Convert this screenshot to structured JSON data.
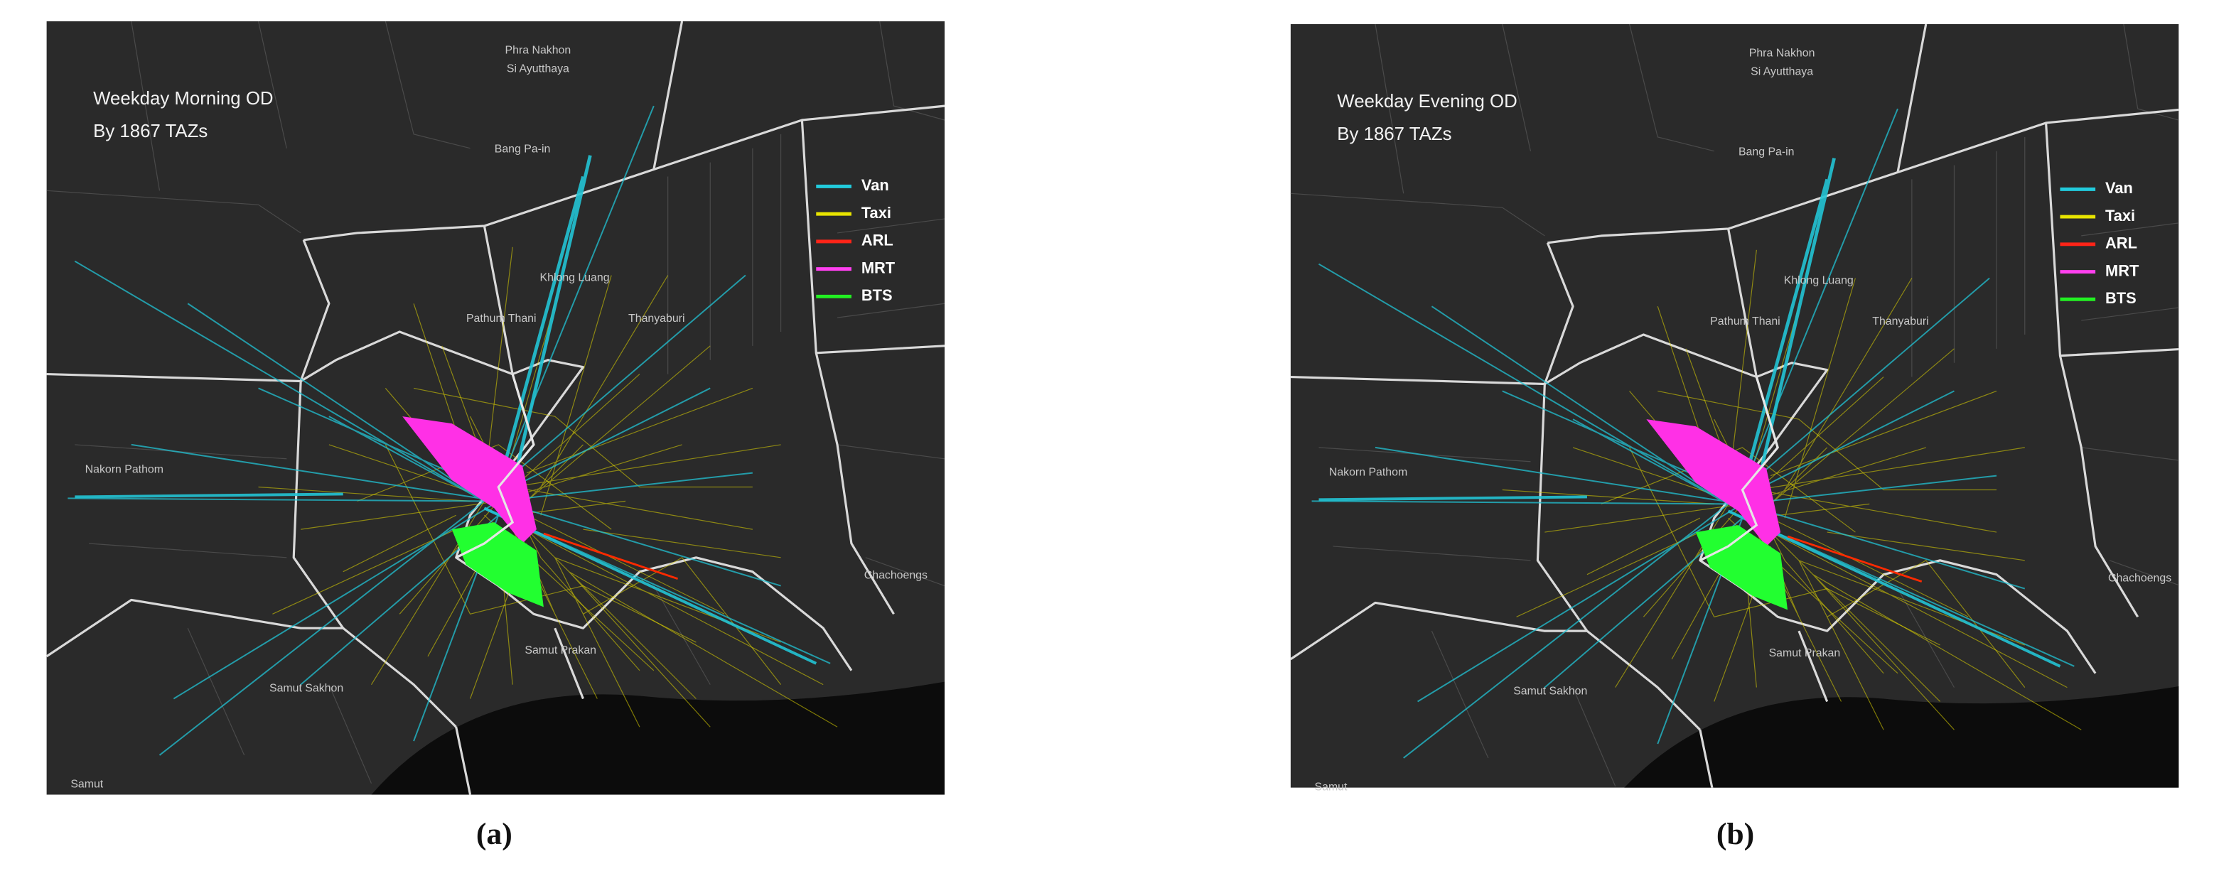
{
  "panels": [
    {
      "title": [
        "Weekday Morning OD",
        "By 1867  TAZs"
      ],
      "legend": [
        {
          "name": "Van",
          "color": "#22cbdc"
        },
        {
          "name": "Taxi",
          "color": "#e8e400"
        },
        {
          "name": "ARL",
          "color": "#ff2418"
        },
        {
          "name": "MRT",
          "color": "#ff40f0"
        },
        {
          "name": "BTS",
          "color": "#22f022"
        }
      ],
      "places": [
        "Phra Nakhon",
        "Si Ayutthaya",
        "Bang Pa-in",
        "Khlong Luang",
        "Pathum Thani",
        "Thanyaburi",
        "Nakorn Pathom",
        "Samut Prakan",
        "Chachoengs",
        "Samut Sakhon",
        "Samut"
      ],
      "caption": "(a)"
    },
    {
      "title": [
        "Weekday Evening OD",
        "By 1867  TAZs"
      ],
      "legend": [
        {
          "name": "Van",
          "color": "#22cbdc"
        },
        {
          "name": "Taxi",
          "color": "#e8e400"
        },
        {
          "name": "ARL",
          "color": "#ff2418"
        },
        {
          "name": "MRT",
          "color": "#ff40f0"
        },
        {
          "name": "BTS",
          "color": "#22f022"
        }
      ],
      "places": [
        "Phra Nakhon",
        "Si Ayutthaya",
        "Bang Pa-in",
        "Khlong Luang",
        "Pathum Thani",
        "Thanyaburi",
        "Nakorn Pathom",
        "Samut Prakan",
        "Chachoengs",
        "Samut Sakhon",
        "Samut"
      ],
      "caption": "(b)"
    }
  ]
}
